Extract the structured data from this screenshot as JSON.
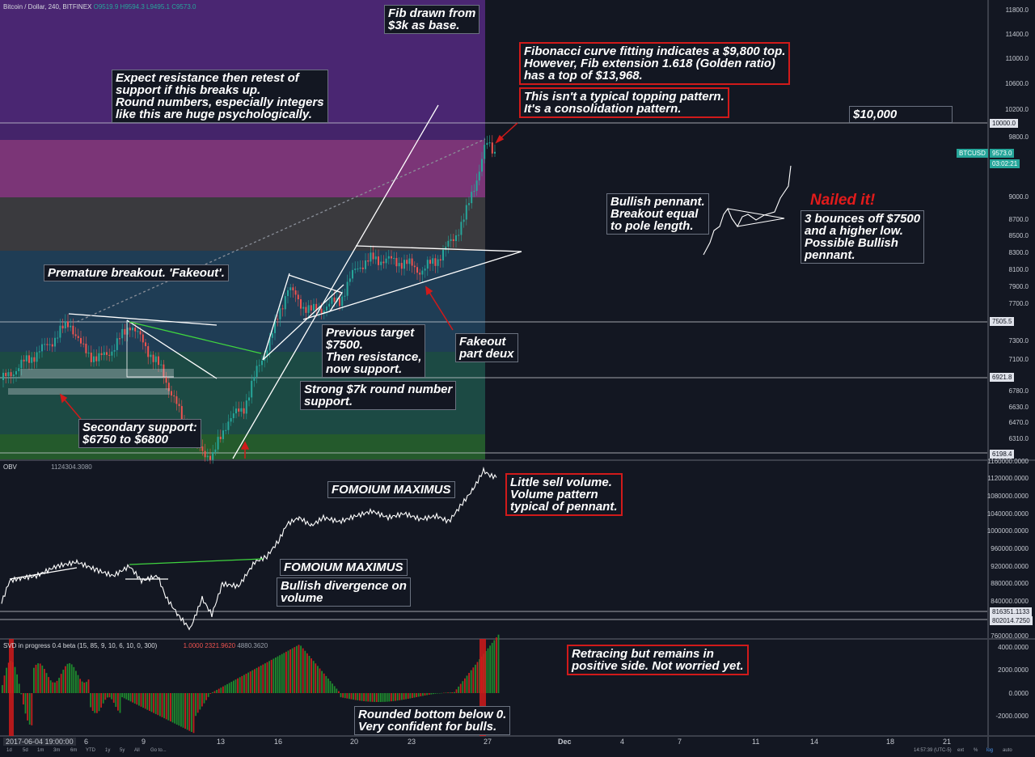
{
  "header": {
    "symbol": "Bitcoin / Dollar, 240, BITFINEX",
    "o": "O9519.9",
    "h": "H9594.3",
    "l": "L9495.1",
    "c": "C9573.0",
    "obv_label": "OBV",
    "obv_value": "1124304.3080",
    "svd_label": "SVD in progress 0.4 beta (15, 85, 9, 10, 6, 10, 0, 300)",
    "svd_v1": "1.0000",
    "svd_v2": "2321.9620",
    "svd_v3": "4880.3620"
  },
  "price_axis": [
    "11800.0",
    "11400.0",
    "11000.0",
    "10600.0",
    "10200.0",
    "9800.0",
    "9000.0",
    "8700.0",
    "8500.0",
    "8300.0",
    "8100.0",
    "7900.0",
    "7700.0",
    "7300.0",
    "7100.0",
    "6780.0",
    "6630.0",
    "6470.0",
    "6310.0"
  ],
  "price_tags": {
    "p10000": "10000.0",
    "last_symbol": "BTCUSD",
    "last": "9573.0",
    "timer": "03:02:21",
    "p7505": "7505.5",
    "p6921": "6921.8",
    "p6198": "6198.4"
  },
  "obv_axis": [
    "1160000.0000",
    "1120000.0000",
    "1080000.0000",
    "1040000.0000",
    "1000000.0000",
    "960000.0000",
    "920000.0000",
    "880000.0000",
    "840000.0000",
    "760000.0000"
  ],
  "obv_tags": {
    "a": "816351.1133",
    "b": "802014.7250"
  },
  "svd_axis": [
    "4000.0000",
    "2000.0000",
    "0.0000",
    "-2000.0000"
  ],
  "time_axis": [
    "2017-06-04 19:00:00",
    "6",
    "9",
    "13",
    "16",
    "20",
    "23",
    "27",
    "Dec",
    "4",
    "7",
    "11",
    "14",
    "18",
    "21"
  ],
  "bottom_bar": {
    "ranges": [
      "1d",
      "5d",
      "1m",
      "3m",
      "6m",
      "YTD",
      "1y",
      "5y",
      "All",
      "Go to..."
    ],
    "clock": "14:57:39 (UTC-5)",
    "ext": "ext",
    "pct": "%",
    "log": "log",
    "auto": "auto"
  },
  "annotations": {
    "fib_base": "Fib drawn from\n$3k as base.",
    "fib_top": "Fibonacci curve fitting indicates a $9,800 top.\nHowever, Fib extension 1.618 (Golden ratio)\nhas a top of $13,968.",
    "consolidation": "This isn't a typical topping pattern.\nIt's a consolidation pattern.",
    "ten_k": "$10,000",
    "resistance": "Expect resistance then retest of\nsupport if this breaks up.\nRound numbers, especially integers\nlike this are huge psychologically.",
    "pennant": "Bullish pennant.\nBreakout equal\nto pole length.",
    "nailed": "Nailed it!",
    "bounces": "3 bounces off $7500\nand a higher low.\nPossible Bullish\npennant.",
    "fakeout1": "Premature breakout. 'Fakeout'.",
    "prev_target": "Previous target\n$7500.\nThen resistance,\nnow support.",
    "fakeout2": "Fakeout\npart deux",
    "seven_k": "Strong $7k round number\nsupport.",
    "secondary": "Secondary support:\n$6750 to $6800",
    "fomo1": "FOMOIUM MAXIMUS",
    "fomo2": "FOMOIUM MAXIMUS",
    "sell_volume": "Little sell volume.\nVolume pattern\ntypical of pennant.",
    "divergence": "Bullish divergence on\nvolume",
    "retracing": "Retracing but remains in\npositive side. Not worried yet.",
    "rounded": "Rounded bottom below 0.\nVery confident for bulls."
  },
  "colors": {
    "background": "#131722",
    "up": "#26a69a",
    "down": "#ef5350",
    "fib_purple": "#4a2672",
    "fib_magenta": "#7b3577",
    "fib_gray": "#3a3a3e",
    "fib_blue": "#1f3d55",
    "fib_teal": "#1c4a44",
    "fib_green": "#245a2c",
    "annotation_red": "#d11a1a"
  }
}
